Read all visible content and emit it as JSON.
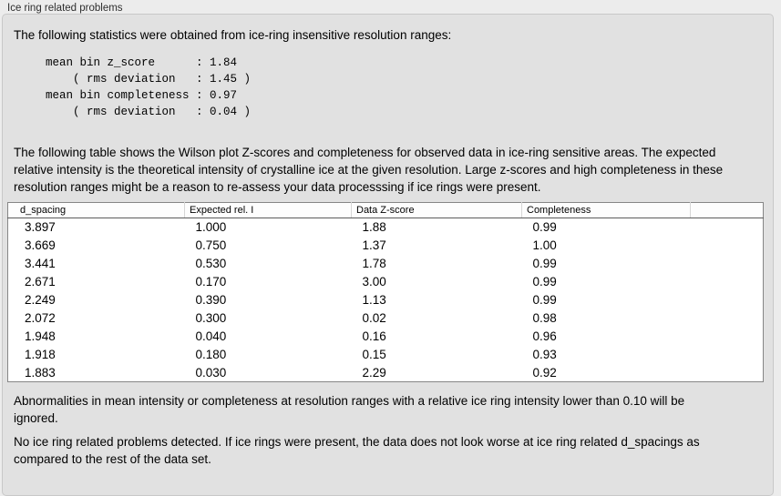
{
  "panel": {
    "title": "Ice ring related problems"
  },
  "intro": "The following statistics were obtained from ice-ring insensitive resolution ranges:",
  "stats_block": "mean bin z_score      : 1.84\n    ( rms deviation   : 1.45 )\nmean bin completeness : 0.97\n    ( rms deviation   : 0.04 )",
  "stats": {
    "mean_bin_z_score": "1.84",
    "z_score_rms_deviation": "1.45",
    "mean_bin_completeness": "0.97",
    "completeness_rms_deviation": "0.04"
  },
  "description": "The following table shows the Wilson plot Z-scores and completeness for observed data in ice-ring sensitive areas. The expected relative intensity is the theoretical intensity of crystalline ice at the given resolution. Large z-scores and high completeness in these resolution ranges might be a reason to re-assess your data processsing if ice rings were present.",
  "table": {
    "columns": [
      "d_spacing",
      "Expected rel. I",
      "Data Z-score",
      "Completeness",
      ""
    ],
    "column_keys": [
      "d-spacing",
      "expected-rel-i",
      "data-z-score",
      "completeness",
      "empty"
    ],
    "rows": [
      [
        "3.897",
        "1.000",
        "1.88",
        "0.99"
      ],
      [
        "3.669",
        "0.750",
        "1.37",
        "1.00"
      ],
      [
        "3.441",
        "0.530",
        "1.78",
        "0.99"
      ],
      [
        "2.671",
        "0.170",
        "3.00",
        "0.99"
      ],
      [
        "2.249",
        "0.390",
        "1.13",
        "0.99"
      ],
      [
        "2.072",
        "0.300",
        "0.02",
        "0.98"
      ],
      [
        "1.948",
        "0.040",
        "0.16",
        "0.96"
      ],
      [
        "1.918",
        "0.180",
        "0.15",
        "0.93"
      ],
      [
        "1.883",
        "0.030",
        "2.29",
        "0.92"
      ]
    ]
  },
  "note_ignore": "Abnormalities in mean intensity or completeness at resolution ranges with a relative ice ring intensity lower than 0.10 will be ignored.",
  "conclusion": "No ice ring related problems detected. If ice rings were present, the data does not look worse at ice ring related d_spacings as compared to the rest of the data set.",
  "colors": {
    "page_bg": "#ececec",
    "box_bg": "#e1e1e1",
    "box_border": "#c8c8c8",
    "table_border": "#868686",
    "header_divider": "#d6d6d6",
    "header_bottom_border": "#5a5a5a",
    "text": "#000000"
  }
}
